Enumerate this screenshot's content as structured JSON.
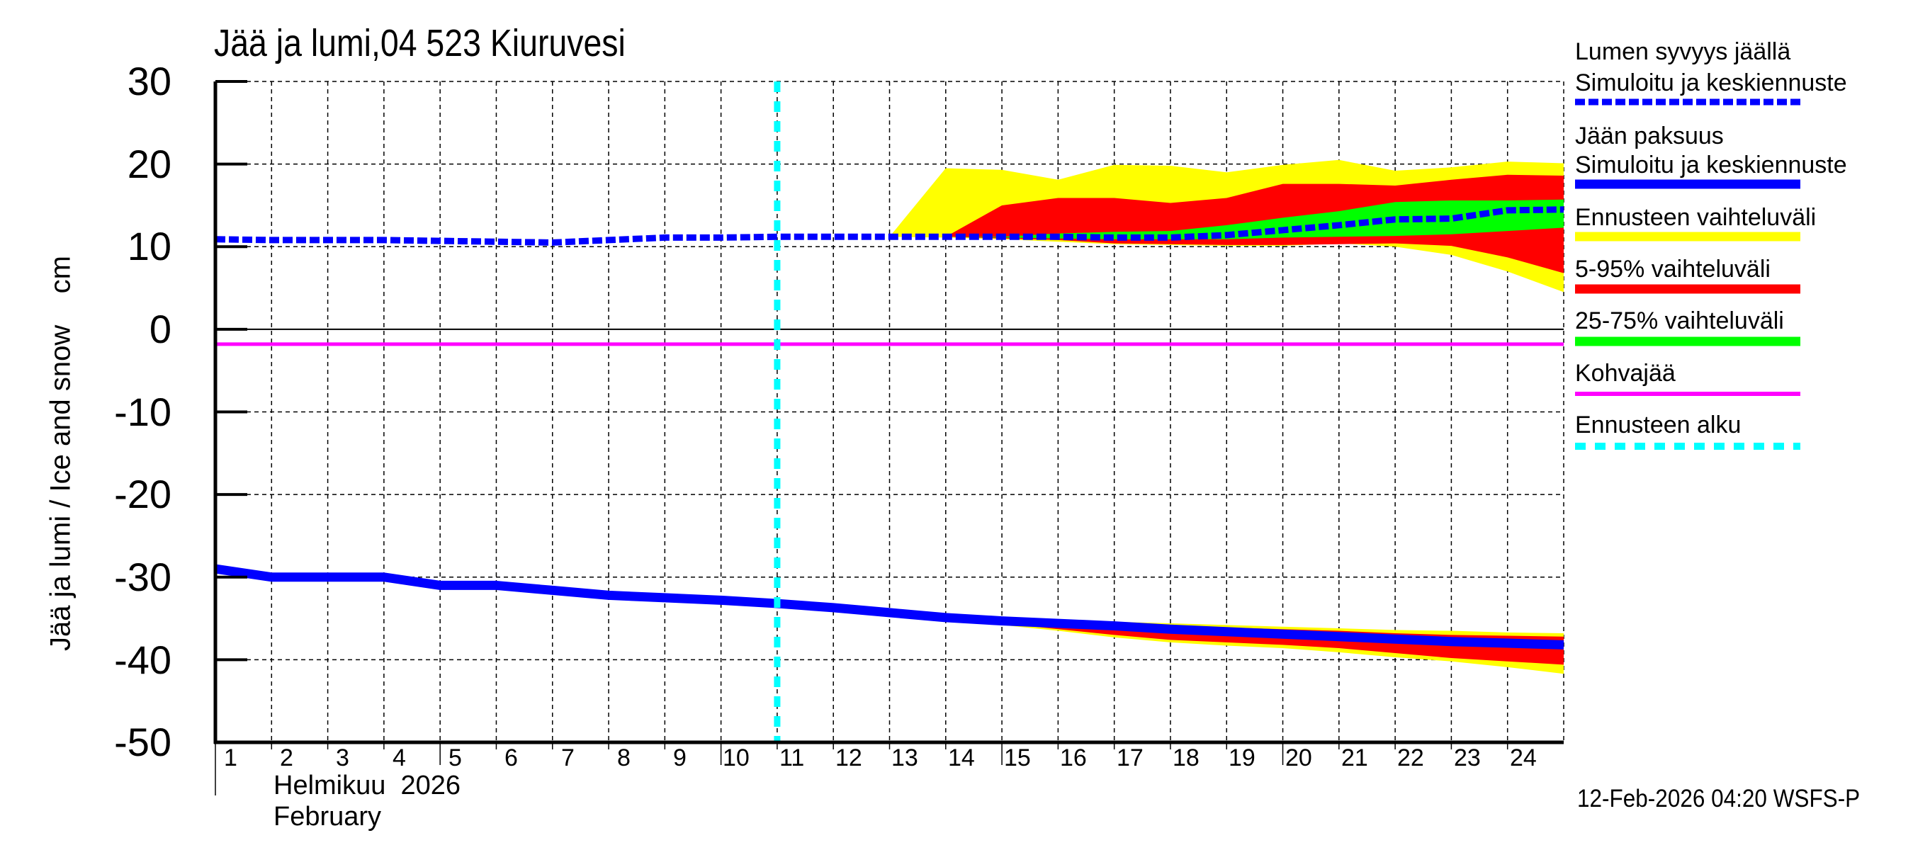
{
  "title": "Jää ja lumi,04 523 Kiuruvesi",
  "y_axis_label": "Jää ja lumi / Ice and snow    cm",
  "x_axis": {
    "month_fi": "Helmikuu  2026",
    "month_en": "February",
    "day_labels": [
      "1",
      "2",
      "3",
      "4",
      "5",
      "6",
      "7",
      "8",
      "9",
      "10",
      "11",
      "12",
      "13",
      "14",
      "15",
      "16",
      "17",
      "18",
      "19",
      "20",
      "21",
      "22",
      "23",
      "24"
    ]
  },
  "y_ticks": [
    "30",
    "20",
    "10",
    "0",
    "-10",
    "-20",
    "-30",
    "-40",
    "-50"
  ],
  "timestamp": "12-Feb-2026 04:20 WSFS-P",
  "legend": {
    "snow_title": "Lumen syvyys jäällä",
    "snow_sub": "Simuloitu ja keskiennuste",
    "ice_title": "Jään paksuus",
    "ice_sub": "Simuloitu ja keskiennuste",
    "range_full": "Ennusteen vaihteluväli",
    "range_5_95": "5-95% vaihteluväli",
    "range_25_75": "25-75% vaihteluväli",
    "slush": "Kohvajää",
    "forecast_start": "Ennusteen alku"
  },
  "colors": {
    "snow": "#0000ff",
    "ice": "#0000ff",
    "range_full": "#ffff00",
    "range_5_95": "#ff0000",
    "range_25_75": "#00ff00",
    "slush": "#ff00ff",
    "forecast_start": "#00ffff",
    "grid": "#000000"
  },
  "chart_data": {
    "type": "line",
    "title": "Jää ja lumi,04 523 Kiuruvesi",
    "xlabel": "Helmikuu 2026 / February",
    "ylabel": "Jää ja lumi / Ice and snow cm",
    "xlim": [
      1,
      25
    ],
    "ylim": [
      -50,
      30
    ],
    "grid": true,
    "legend_position": "right",
    "forecast_start_day": 11,
    "slush_level": -1.8,
    "snow_depth": {
      "x": [
        1,
        2,
        3,
        4,
        5,
        6,
        7,
        8,
        9,
        10,
        11,
        12,
        13,
        14,
        15,
        16,
        17,
        18,
        19,
        20,
        21,
        22,
        23,
        24,
        25
      ],
      "median": [
        10.9,
        10.8,
        10.8,
        10.8,
        10.7,
        10.6,
        10.5,
        10.8,
        11.1,
        11.1,
        11.2,
        11.2,
        11.2,
        11.2,
        11.2,
        11.2,
        11.1,
        11.1,
        11.4,
        12.0,
        12.6,
        13.3,
        13.4,
        14.4,
        14.5
      ]
    },
    "snow_forecast_bands": {
      "x": [
        13,
        14,
        15,
        16,
        17,
        18,
        19,
        20,
        21,
        22,
        23,
        24,
        25
      ],
      "full_max": [
        11.2,
        19.5,
        19.3,
        18.1,
        19.9,
        19.8,
        19.0,
        19.9,
        20.5,
        19.2,
        19.6,
        20.3,
        20.1
      ],
      "p95": [
        11.2,
        11.2,
        15.0,
        15.9,
        15.9,
        15.3,
        15.9,
        17.6,
        17.6,
        17.4,
        18.1,
        18.7,
        18.6
      ],
      "p75": [
        11.2,
        11.2,
        11.2,
        11.6,
        11.8,
        11.9,
        12.6,
        13.5,
        14.3,
        15.4,
        15.6,
        15.6,
        15.7
      ],
      "p25": [
        11.2,
        11.2,
        11.1,
        11.0,
        10.9,
        10.9,
        10.9,
        11.1,
        11.2,
        11.3,
        11.5,
        11.9,
        12.3
      ],
      "p5": [
        11.2,
        11.2,
        11.0,
        10.8,
        10.4,
        10.3,
        10.2,
        10.2,
        10.3,
        10.4,
        10.1,
        8.7,
        6.8
      ],
      "full_min": [
        11.2,
        11.1,
        10.9,
        10.6,
        10.3,
        10.2,
        10.1,
        10.1,
        10.4,
        10.0,
        9.0,
        7.0,
        4.5
      ]
    },
    "ice_thickness": {
      "x": [
        1,
        2,
        3,
        4,
        5,
        6,
        7,
        8,
        9,
        10,
        11,
        12,
        13,
        14,
        15,
        16,
        17,
        18,
        19,
        20,
        21,
        22,
        23,
        24,
        25
      ],
      "median": [
        -29.0,
        -30.0,
        -30.0,
        -30.0,
        -31.0,
        -31.0,
        -31.6,
        -32.2,
        -32.5,
        -32.8,
        -33.2,
        -33.7,
        -34.3,
        -34.9,
        -35.3,
        -35.6,
        -35.9,
        -36.3,
        -36.6,
        -36.9,
        -37.2,
        -37.5,
        -37.8,
        -38.0,
        -38.2
      ]
    },
    "ice_forecast_bands": {
      "x": [
        14,
        15,
        16,
        17,
        18,
        19,
        20,
        21,
        22,
        23,
        24,
        25
      ],
      "full_max": [
        -34.7,
        -35.0,
        -35.2,
        -35.4,
        -35.6,
        -35.8,
        -36.0,
        -36.2,
        -36.4,
        -36.5,
        -36.7,
        -36.8
      ],
      "p95": [
        -34.8,
        -35.1,
        -35.4,
        -35.6,
        -35.8,
        -36.1,
        -36.3,
        -36.5,
        -36.8,
        -37.0,
        -37.1,
        -37.2
      ],
      "p5": [
        -35.0,
        -35.6,
        -36.3,
        -37.0,
        -37.6,
        -37.9,
        -38.2,
        -38.6,
        -39.2,
        -39.8,
        -40.2,
        -40.6
      ],
      "full_min": [
        -35.0,
        -35.8,
        -36.5,
        -37.3,
        -37.9,
        -38.3,
        -38.6,
        -39.1,
        -39.7,
        -40.2,
        -40.9,
        -41.7
      ]
    }
  }
}
